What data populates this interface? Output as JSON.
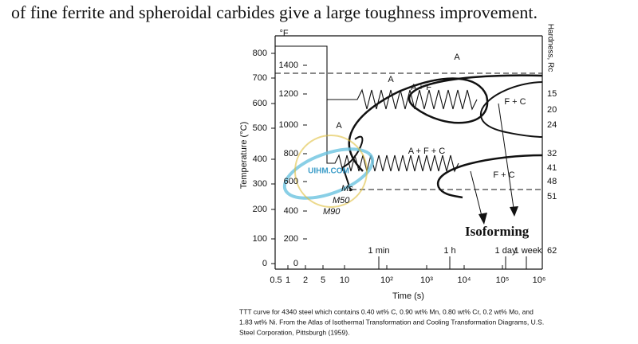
{
  "header": {
    "text": "of fine ferrite and spheroidal carbides give a large toughness improvement."
  },
  "figure": {
    "axis_labels": {
      "fahrenheit": "°F",
      "celsius": "Temperature (°C)",
      "hardness": "Hardness, Rc",
      "time": "Time (s)"
    },
    "celsius_ticks": [
      "800",
      "700",
      "600",
      "500",
      "400",
      "300",
      "200",
      "100",
      "0"
    ],
    "fahrenheit_ticks": [
      "1400",
      "1200",
      "1000",
      "800",
      "600",
      "400",
      "200",
      "0"
    ],
    "time_ticks": [
      "0.5",
      "1",
      "2",
      "5",
      "10",
      "10²",
      "10³",
      "10⁴",
      "10⁵",
      "10⁶"
    ],
    "hardness_ticks": [
      "15",
      "20",
      "24",
      "32",
      "41",
      "48",
      "51",
      "62"
    ],
    "time_markers": [
      "1 min",
      "1 h",
      "1 day",
      "1 week"
    ],
    "regions": [
      "A",
      "A",
      "A + F",
      "F + C",
      "A",
      "A + F + C",
      "F + C"
    ],
    "martensite": [
      "Ms",
      "M50",
      "M90"
    ],
    "annotation": "Isoforming",
    "watermark": "UIHM.COM"
  },
  "caption": {
    "lines": [
      "TTT curve for 4340 steel which contains 0.40 wt% C, 0.90 wt% Mn, 0.80 wt% Cr, 0.2 wt% Mo, and",
      "1.83 wt% Ni. From the Atlas of Isothermal Transformation and Cooling Transformation Diagrams, U.S.",
      "Steel Corporation, Pittsburgh (1959)."
    ]
  }
}
